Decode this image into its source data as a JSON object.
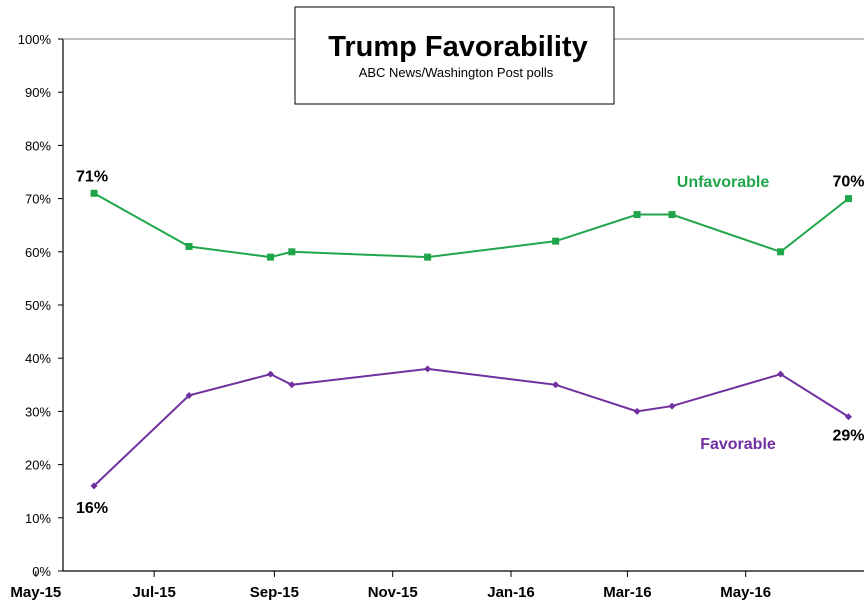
{
  "chart_data": {
    "type": "line",
    "title": "Trump Favorability",
    "subtitle": "ABC News/Washington  Post polls",
    "xlabel": "",
    "ylabel": "",
    "ylim": [
      0,
      100
    ],
    "y_ticks": [
      "0%",
      "10%",
      "20%",
      "30%",
      "40%",
      "50%",
      "60%",
      "70%",
      "80%",
      "90%",
      "100%"
    ],
    "x_tick_labels": [
      "May-15",
      "Jul-15",
      "Sep-15",
      "Nov-15",
      "Jan-16",
      "Mar-16",
      "May-16"
    ],
    "grid": false,
    "x": [
      "2015-05-31",
      "2015-07-19",
      "2015-08-30",
      "2015-09-10",
      "2015-11-19",
      "2016-01-24",
      "2016-03-06",
      "2016-03-24",
      "2016-05-19",
      "2016-06-23"
    ],
    "series": [
      {
        "name": "Unfavorable",
        "color": "#1fa64a",
        "marker": "square",
        "values": [
          71,
          61,
          59,
          60,
          59,
          62,
          67,
          67,
          60,
          70
        ]
      },
      {
        "name": "Favorable",
        "color": "#7030a0",
        "marker": "diamond",
        "values": [
          16,
          33,
          37,
          35,
          38,
          35,
          30,
          31,
          37,
          29
        ]
      }
    ],
    "annotations": [
      {
        "text": "71%",
        "series": "Unfavorable",
        "point": "first"
      },
      {
        "text": "70%",
        "series": "Unfavorable",
        "point": "last"
      },
      {
        "text": "16%",
        "series": "Favorable",
        "point": "first"
      },
      {
        "text": "29%",
        "series": "Favorable",
        "point": "last"
      }
    ]
  }
}
